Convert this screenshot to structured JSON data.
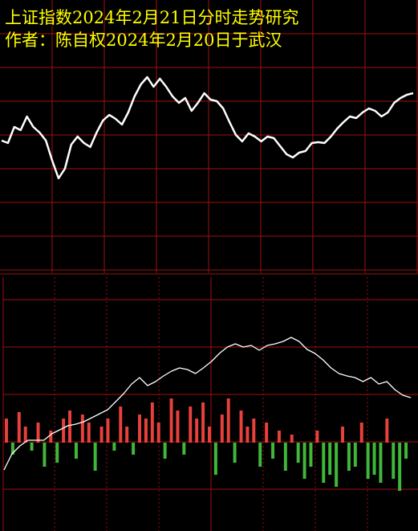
{
  "chart_data": [
    {
      "type": "line",
      "title": "上证指数2024年2月21日分时走势研究",
      "subtitle": "作者：陈自权2024年2月20日于武汉",
      "color": "#ffffff",
      "ylim": [
        0,
        340
      ],
      "values": [
        165,
        162,
        182,
        178,
        195,
        182,
        175,
        165,
        140,
        118,
        130,
        160,
        170,
        162,
        157,
        175,
        190,
        197,
        192,
        185,
        200,
        220,
        235,
        244,
        232,
        242,
        232,
        220,
        212,
        218,
        202,
        212,
        224,
        216,
        214,
        205,
        188,
        172,
        164,
        174,
        170,
        164,
        170,
        168,
        158,
        148,
        144,
        150,
        152,
        162,
        163,
        162,
        170,
        180,
        188,
        195,
        193,
        200,
        205,
        202,
        195,
        200,
        212,
        218,
        222,
        224
      ]
    },
    {
      "type": "line",
      "color": "#ffffff",
      "ylim": [
        0,
        321
      ],
      "values": [
        76,
        96,
        106,
        113,
        113,
        113,
        121,
        126,
        131,
        133,
        136,
        141,
        146,
        151,
        161,
        171,
        183,
        191,
        181,
        186,
        193,
        199,
        203,
        201,
        196,
        203,
        211,
        221,
        229,
        233,
        229,
        231,
        225,
        231,
        233,
        236,
        241,
        236,
        226,
        221,
        213,
        203,
        196,
        193,
        191,
        186,
        191,
        183,
        186,
        176,
        169,
        166
      ]
    },
    {
      "type": "bar",
      "up_color": "#e8413c",
      "down_color": "#3fb83a",
      "ylim": [
        -110,
        211
      ],
      "values": [
        30,
        -15,
        38,
        20,
        -10,
        25,
        -30,
        15,
        -25,
        30,
        40,
        -20,
        35,
        25,
        -35,
        20,
        30,
        -10,
        45,
        20,
        -15,
        35,
        30,
        50,
        25,
        -20,
        55,
        40,
        -15,
        45,
        30,
        50,
        20,
        -40,
        35,
        55,
        -25,
        40,
        20,
        30,
        -30,
        25,
        -20,
        15,
        -35,
        10,
        -25,
        -45,
        -30,
        15,
        -50,
        -40,
        -55,
        20,
        -35,
        -30,
        25,
        -45,
        -40,
        -50,
        30,
        -45,
        -60,
        -20
      ]
    }
  ]
}
